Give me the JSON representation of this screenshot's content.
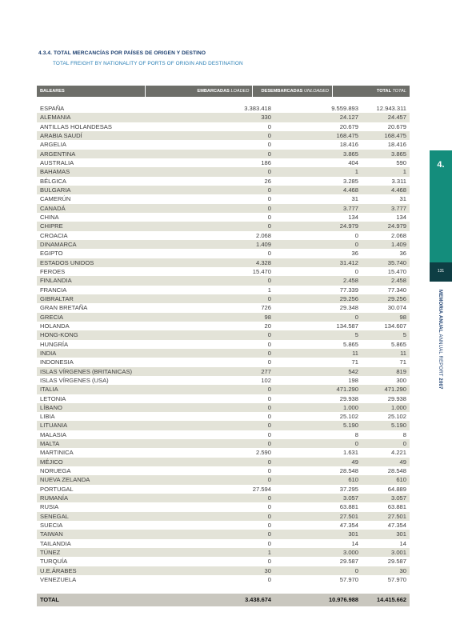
{
  "header": {
    "title": "4.3.4. TOTAL MERCANCÍAS POR PAÍSES DE ORIGEN Y DESTINO",
    "subtitle": "TOTAL FREIGHT BY NATIONALITY OF PORTS OF ORIGIN AND DESTINATION"
  },
  "table": {
    "headers": {
      "region": "BALEARES",
      "loaded": "EMBARCADAS",
      "loaded_en": "LOADED",
      "unloaded": "DESEMBARCADAS",
      "unloaded_en": "UNLOADED",
      "total": "TOTAL",
      "total_en": "TOTAL"
    },
    "rows": [
      {
        "country": "ESPAÑA",
        "loaded": "3.383.418",
        "unloaded": "9.559.893",
        "total": "12.943.311"
      },
      {
        "country": "ALEMANIA",
        "loaded": "330",
        "unloaded": "24.127",
        "total": "24.457"
      },
      {
        "country": "ANTILLAS HOLANDESAS",
        "loaded": "0",
        "unloaded": "20.679",
        "total": "20.679"
      },
      {
        "country": "ARABIA SAUDÍ",
        "loaded": "0",
        "unloaded": "168.475",
        "total": "168.475"
      },
      {
        "country": "ARGELIA",
        "loaded": "0",
        "unloaded": "18.416",
        "total": "18.416"
      },
      {
        "country": "ARGENTINA",
        "loaded": "0",
        "unloaded": "3.865",
        "total": "3.865"
      },
      {
        "country": "AUSTRALIA",
        "loaded": "186",
        "unloaded": "404",
        "total": "590"
      },
      {
        "country": "BAHAMAS",
        "loaded": "0",
        "unloaded": "1",
        "total": "1"
      },
      {
        "country": "BÉLGICA",
        "loaded": "26",
        "unloaded": "3.285",
        "total": "3.311"
      },
      {
        "country": "BULGARIA",
        "loaded": "0",
        "unloaded": "4.468",
        "total": "4.468"
      },
      {
        "country": "CAMERÚN",
        "loaded": "0",
        "unloaded": "31",
        "total": "31"
      },
      {
        "country": "CANADÁ",
        "loaded": "0",
        "unloaded": "3.777",
        "total": "3.777"
      },
      {
        "country": "CHINA",
        "loaded": "0",
        "unloaded": "134",
        "total": "134"
      },
      {
        "country": "CHIPRE",
        "loaded": "0",
        "unloaded": "24.979",
        "total": "24.979"
      },
      {
        "country": "CROACIA",
        "loaded": "2.068",
        "unloaded": "0",
        "total": "2.068"
      },
      {
        "country": "DINAMARCA",
        "loaded": "1.409",
        "unloaded": "0",
        "total": "1.409"
      },
      {
        "country": "EGIPTO",
        "loaded": "0",
        "unloaded": "36",
        "total": "36"
      },
      {
        "country": "ESTADOS UNIDOS",
        "loaded": "4.328",
        "unloaded": "31.412",
        "total": "35.740"
      },
      {
        "country": "FEROES",
        "loaded": "15.470",
        "unloaded": "0",
        "total": "15.470"
      },
      {
        "country": "FINLANDIA",
        "loaded": "0",
        "unloaded": "2.458",
        "total": "2.458"
      },
      {
        "country": "FRANCIA",
        "loaded": "1",
        "unloaded": "77.339",
        "total": "77.340"
      },
      {
        "country": "GIBRALTAR",
        "loaded": "0",
        "unloaded": "29.256",
        "total": "29.256"
      },
      {
        "country": "GRAN BRETAÑA",
        "loaded": "726",
        "unloaded": "29.348",
        "total": "30.074"
      },
      {
        "country": "GRECIA",
        "loaded": "98",
        "unloaded": "0",
        "total": "98"
      },
      {
        "country": "HOLANDA",
        "loaded": "20",
        "unloaded": "134.587",
        "total": "134.607"
      },
      {
        "country": "HONG-KONG",
        "loaded": "0",
        "unloaded": "5",
        "total": "5"
      },
      {
        "country": "HUNGRÍA",
        "loaded": "0",
        "unloaded": "5.865",
        "total": "5.865"
      },
      {
        "country": "INDIA",
        "loaded": "0",
        "unloaded": "11",
        "total": "11"
      },
      {
        "country": "INDONESIA",
        "loaded": "0",
        "unloaded": "71",
        "total": "71"
      },
      {
        "country": "ISLAS VÍRGENES (BRITANICAS)",
        "loaded": "277",
        "unloaded": "542",
        "total": "819"
      },
      {
        "country": "ISLAS VÍRGENES (USA)",
        "loaded": "102",
        "unloaded": "198",
        "total": "300"
      },
      {
        "country": "ITALIA",
        "loaded": "0",
        "unloaded": "471.290",
        "total": "471.290"
      },
      {
        "country": "LETONIA",
        "loaded": "0",
        "unloaded": "29.938",
        "total": "29.938"
      },
      {
        "country": "LÍBANO",
        "loaded": "0",
        "unloaded": "1.000",
        "total": "1.000"
      },
      {
        "country": "LIBIA",
        "loaded": "0",
        "unloaded": "25.102",
        "total": "25.102"
      },
      {
        "country": "LITUANIA",
        "loaded": "0",
        "unloaded": "5.190",
        "total": "5.190"
      },
      {
        "country": "MALASIA",
        "loaded": "0",
        "unloaded": "8",
        "total": "8"
      },
      {
        "country": "MALTA",
        "loaded": "0",
        "unloaded": "0",
        "total": "0"
      },
      {
        "country": "MARTINICA",
        "loaded": "2.590",
        "unloaded": "1.631",
        "total": "4.221"
      },
      {
        "country": "MÉJICO",
        "loaded": "0",
        "unloaded": "49",
        "total": "49"
      },
      {
        "country": "NORUEGA",
        "loaded": "0",
        "unloaded": "28.548",
        "total": "28.548"
      },
      {
        "country": "NUEVA ZELANDA",
        "loaded": "0",
        "unloaded": "610",
        "total": "610"
      },
      {
        "country": "PORTUGAL",
        "loaded": "27.594",
        "unloaded": "37.295",
        "total": "64.889"
      },
      {
        "country": "RUMANÍA",
        "loaded": "0",
        "unloaded": "3.057",
        "total": "3.057"
      },
      {
        "country": "RUSIA",
        "loaded": "0",
        "unloaded": "63.881",
        "total": "63.881"
      },
      {
        "country": "SENEGAL",
        "loaded": "0",
        "unloaded": "27.501",
        "total": "27.501"
      },
      {
        "country": "SUECIA",
        "loaded": "0",
        "unloaded": "47.354",
        "total": "47.354"
      },
      {
        "country": "TAIWAN",
        "loaded": "0",
        "unloaded": "301",
        "total": "301"
      },
      {
        "country": "TAILANDIA",
        "loaded": "0",
        "unloaded": "14",
        "total": "14"
      },
      {
        "country": "TÚNEZ",
        "loaded": "1",
        "unloaded": "3.000",
        "total": "3.001"
      },
      {
        "country": "TURQUÍA",
        "loaded": "0",
        "unloaded": "29.587",
        "total": "29.587"
      },
      {
        "country": "U.E.ÁRABES",
        "loaded": "30",
        "unloaded": "0",
        "total": "30"
      },
      {
        "country": "VENEZUELA",
        "loaded": "0",
        "unloaded": "57.970",
        "total": "57.970"
      }
    ],
    "total_row": {
      "label": "TOTAL",
      "loaded": "3.438.674",
      "unloaded": "10.976.988",
      "total": "14.415.662"
    }
  },
  "sidebar": {
    "chapter": "4.",
    "page": "131",
    "caption_bold": "MEMORIA ANUAL",
    "caption_mid": " ANNUAL REPORT ",
    "caption_year": "2007",
    "accent_color": "#148d7c",
    "dark_color": "#0e3e44"
  }
}
